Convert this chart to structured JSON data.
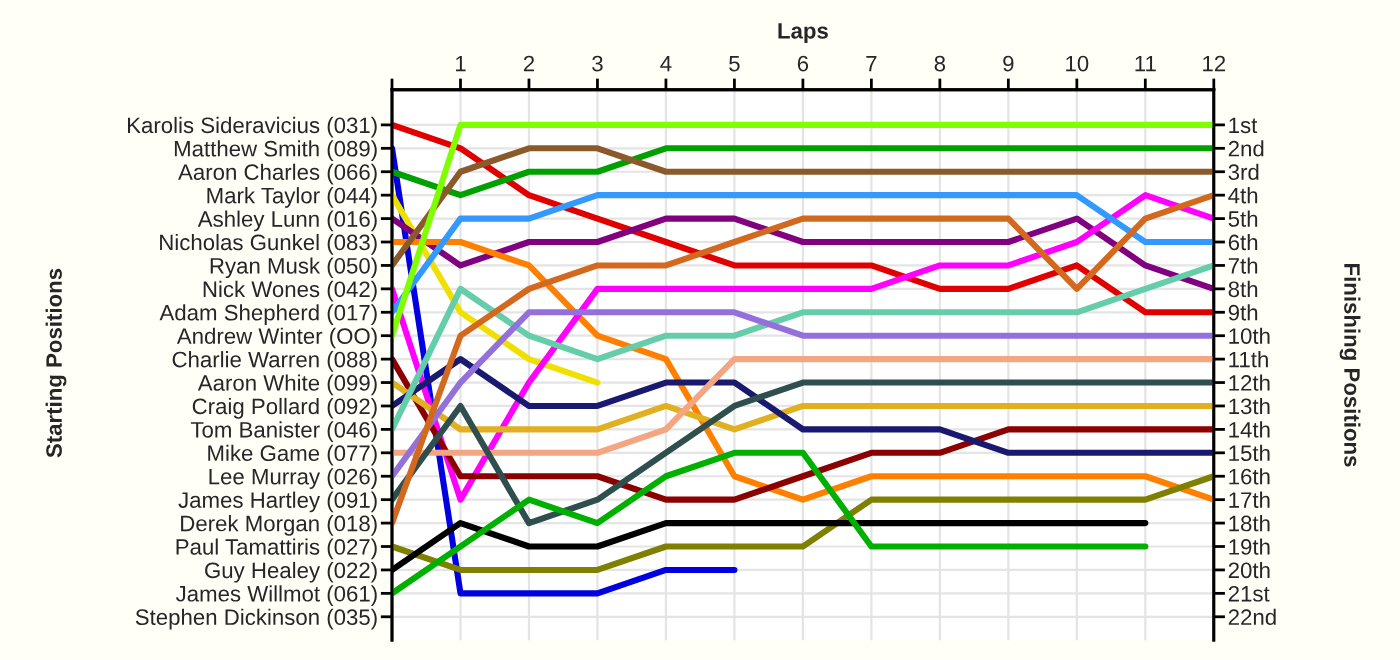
{
  "chart_data": {
    "type": "line",
    "xlabel": "Laps",
    "y2label": "Finishing Positions",
    "x": [
      0,
      1,
      2,
      3,
      4,
      5,
      6,
      7,
      8,
      9,
      10,
      11,
      12
    ],
    "xlim": [
      0,
      12
    ],
    "xticks": [
      {
        "value": 0,
        "label": null
      },
      1,
      2,
      3,
      4,
      5,
      6,
      7,
      8,
      9,
      10,
      11,
      12
    ],
    "y2lim": [
      23,
      -0.5
    ],
    "y2ticks": [
      {
        "value": 1,
        "label": "1st"
      },
      {
        "value": 2,
        "label": "2nd"
      },
      {
        "value": 3,
        "label": "3rd"
      },
      {
        "value": 4,
        "label": "4th"
      },
      {
        "value": 5,
        "label": "5th"
      },
      {
        "value": 6,
        "label": "6th"
      },
      {
        "value": 7,
        "label": "7th"
      },
      {
        "value": 8,
        "label": "8th"
      },
      {
        "value": 9,
        "label": "9th"
      },
      {
        "value": 10,
        "label": "10th"
      },
      {
        "value": 11,
        "label": "11th"
      },
      {
        "value": 12,
        "label": "12th"
      },
      {
        "value": 13,
        "label": "13th"
      },
      {
        "value": 14,
        "label": "14th"
      },
      {
        "value": 15,
        "label": "15th"
      },
      {
        "value": 16,
        "label": "16th"
      },
      {
        "value": 17,
        "label": "17th"
      },
      {
        "value": 18,
        "label": "18th"
      },
      {
        "value": 19,
        "label": "19th"
      },
      {
        "value": 20,
        "label": "20th"
      },
      {
        "value": 21,
        "label": "21st"
      },
      {
        "value": 22,
        "label": "22nd"
      }
    ],
    "annotations": [
      "Starting Positions",
      "Karolis Sideravicius (031)",
      "Matthew Smith (089)",
      "Aaron Charles (066)",
      "Mark Taylor (044)",
      "Ashley Lunn (016)",
      "Nicholas Gunkel (083)",
      "Ryan Musk (050)",
      "Nick Wones (042)",
      "Adam Shepherd (017)",
      "Andrew Winter (OO)",
      "Charlie Warren (088)",
      "Aaron White (099)",
      "Craig Pollard (092)",
      "Tom Banister (046)",
      "Mike Game (077)",
      "Lee Murray (026)",
      "James Hartley (091)",
      "Derek Morgan (018)",
      "Paul Tamattiris (027)",
      "Guy Healey (022)",
      "James Willmot (061)",
      "Stephen Dickinson (035)"
    ],
    "grid": true,
    "marker": "none",
    "line_style": "solid",
    "series": [
      {
        "axis": "y2",
        "color": "#e00000",
        "values": [
          1,
          2,
          4,
          5,
          6,
          7,
          7,
          7,
          8,
          8,
          7,
          9,
          9
        ]
      },
      {
        "axis": "y2",
        "color": "#0000e0",
        "values": [
          2,
          21,
          21,
          21,
          20,
          20,
          null,
          null,
          null,
          null,
          null,
          null,
          null
        ]
      },
      {
        "axis": "y2",
        "color": "#00a000",
        "values": [
          3,
          4,
          3,
          3,
          2,
          2,
          2,
          2,
          2,
          2,
          2,
          2,
          2
        ]
      },
      {
        "axis": "y2",
        "color": "#f0e000",
        "values": [
          4,
          9,
          11,
          12,
          null,
          null,
          null,
          null,
          null,
          null,
          null,
          null,
          null
        ]
      },
      {
        "axis": "y2",
        "color": "#800080",
        "values": [
          5,
          7,
          6,
          6,
          5,
          5,
          6,
          6,
          6,
          6,
          5,
          7,
          8
        ]
      },
      {
        "axis": "y2",
        "color": "#ff8000",
        "values": [
          6,
          6,
          7,
          10,
          11,
          16,
          17,
          16,
          16,
          16,
          16,
          16,
          17
        ]
      },
      {
        "axis": "y2",
        "color": "#8b5a2b",
        "values": [
          7,
          3,
          2,
          2,
          3,
          3,
          3,
          3,
          3,
          3,
          3,
          3,
          3
        ]
      },
      {
        "axis": "y2",
        "color": "#ff00ff",
        "values": [
          8,
          17,
          12,
          8,
          8,
          8,
          8,
          8,
          7,
          7,
          6,
          4,
          5
        ]
      },
      {
        "axis": "y2",
        "color": "#3399ff",
        "values": [
          9,
          5,
          5,
          4,
          4,
          4,
          4,
          4,
          4,
          4,
          4,
          6,
          6
        ]
      },
      {
        "axis": "y2",
        "color": "#80ff00",
        "values": [
          10,
          1,
          1,
          1,
          1,
          1,
          1,
          1,
          1,
          1,
          1,
          1,
          1
        ]
      },
      {
        "axis": "y2",
        "color": "#8b0000",
        "values": [
          11,
          16,
          16,
          16,
          17,
          17,
          16,
          15,
          15,
          14,
          14,
          14,
          14
        ]
      },
      {
        "axis": "y2",
        "color": "#e0b020",
        "values": [
          12,
          14,
          14,
          14,
          13,
          14,
          13,
          13,
          13,
          13,
          13,
          13,
          13
        ]
      },
      {
        "axis": "y2",
        "color": "#191970",
        "values": [
          13,
          11,
          13,
          13,
          12,
          12,
          14,
          14,
          14,
          15,
          15,
          15,
          15
        ]
      },
      {
        "axis": "y2",
        "color": "#66cdaa",
        "values": [
          14,
          8,
          10,
          11,
          10,
          10,
          9,
          9,
          9,
          9,
          9,
          8,
          7
        ]
      },
      {
        "axis": "y2",
        "color": "#f4a582",
        "values": [
          15,
          15,
          15,
          15,
          14,
          11,
          11,
          11,
          11,
          11,
          11,
          11,
          11
        ]
      },
      {
        "axis": "y2",
        "color": "#9370db",
        "values": [
          16,
          12,
          9,
          9,
          9,
          9,
          10,
          10,
          10,
          10,
          10,
          10,
          10
        ]
      },
      {
        "axis": "y2",
        "color": "#2f4f4f",
        "values": [
          17,
          13,
          18,
          17,
          15,
          13,
          12,
          12,
          12,
          12,
          12,
          12,
          12
        ]
      },
      {
        "axis": "y2",
        "color": "#d2691e",
        "values": [
          18,
          10,
          8,
          7,
          7,
          6,
          5,
          5,
          5,
          5,
          8,
          5,
          4
        ]
      },
      {
        "axis": "y2",
        "color": "#808000",
        "values": [
          19,
          20,
          20,
          20,
          19,
          19,
          19,
          17,
          17,
          17,
          17,
          17,
          16
        ]
      },
      {
        "axis": "y2",
        "color": "#000000",
        "values": [
          20,
          18,
          19,
          19,
          18,
          18,
          18,
          18,
          18,
          18,
          18,
          18,
          null
        ]
      },
      {
        "axis": "y2",
        "color": "#00b000",
        "values": [
          21,
          19,
          17,
          18,
          16,
          15,
          15,
          19,
          19,
          19,
          19,
          19,
          null
        ]
      }
    ]
  }
}
